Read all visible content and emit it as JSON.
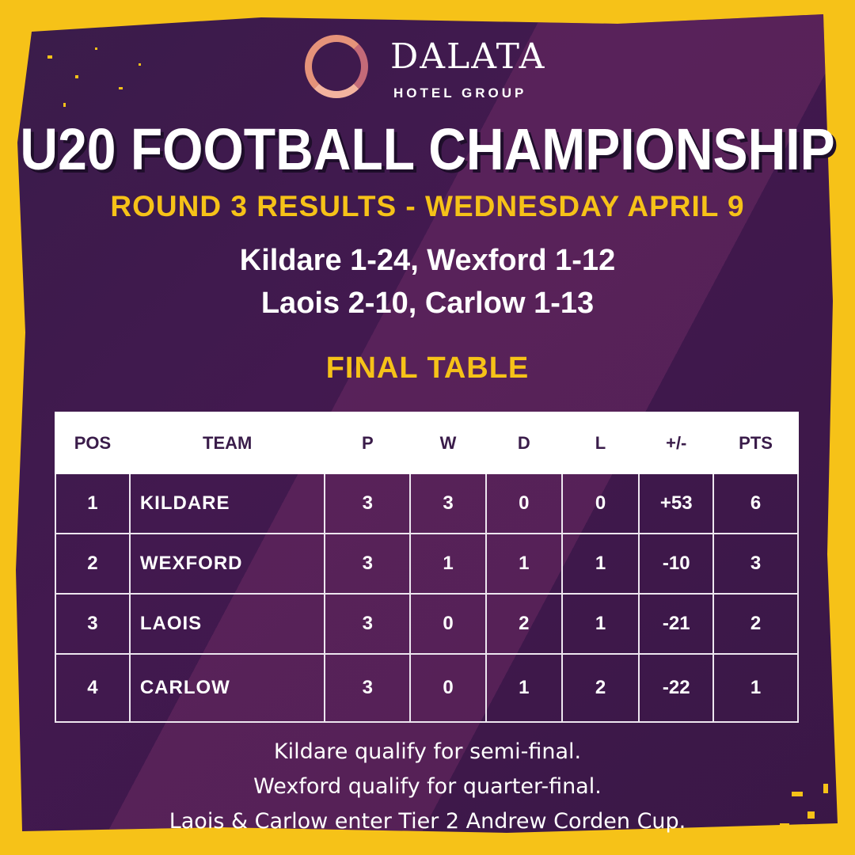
{
  "brand": {
    "name": "DALATA",
    "sub": "HOTEL GROUP"
  },
  "title": "U20 FOOTBALL CHAMPIONSHIP",
  "subtitle": "ROUND 3 RESULTS - WEDNESDAY APRIL 9",
  "results": [
    "Kildare 1-24, Wexford 1-12",
    "Laois 2-10, Carlow 1-13"
  ],
  "table": {
    "heading": "FINAL TABLE",
    "columns": [
      "POS",
      "TEAM",
      "P",
      "W",
      "D",
      "L",
      "+/-",
      "PTS"
    ],
    "rows": [
      [
        "1",
        "KILDARE",
        "3",
        "3",
        "0",
        "0",
        "+53",
        "6"
      ],
      [
        "2",
        "WEXFORD",
        "3",
        "1",
        "1",
        "1",
        "-10",
        "3"
      ],
      [
        "3",
        "LAOIS",
        "3",
        "0",
        "2",
        "1",
        "-21",
        "2"
      ],
      [
        "4",
        "CARLOW",
        "3",
        "0",
        "1",
        "2",
        "-22",
        "1"
      ]
    ]
  },
  "notes": [
    "Kildare qualify for semi-final.",
    "Wexford qualify for quarter-final.",
    "Laois & Carlow enter Tier 2 Andrew Corden Cup."
  ],
  "colors": {
    "accent": "#F6C218",
    "background": "#3A1C4A",
    "text": "#FFFFFF"
  }
}
